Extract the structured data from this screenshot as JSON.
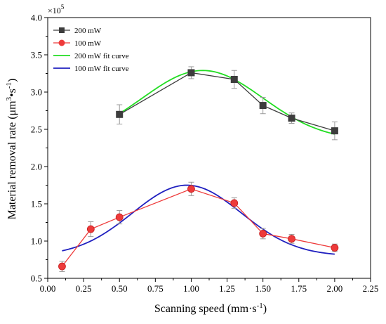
{
  "chart_data": {
    "type": "line",
    "xlabel_main": "Scanning speed (mm·s",
    "xlabel_sup": "-1",
    "xlabel_end": ")",
    "ylabel_main": "Material removal rate (μm",
    "ylabel_sup1": "3",
    "ylabel_mid": "•s",
    "ylabel_sup2": "-1",
    "ylabel_end": ")",
    "y_multiplier_base": "×10",
    "y_multiplier_exp": "5",
    "xlim": [
      0.0,
      2.25
    ],
    "ylim": [
      0.5,
      4.0
    ],
    "x_ticks": [
      "0.00",
      "0.25",
      "0.50",
      "0.75",
      "1.00",
      "1.25",
      "1.50",
      "1.75",
      "2.00",
      "2.25"
    ],
    "y_ticks": [
      "0.5",
      "1.0",
      "1.5",
      "2.0",
      "2.5",
      "3.0",
      "3.5",
      "4.0"
    ],
    "grid": false,
    "legend_position": "top-left",
    "series": [
      {
        "name": "200 mW",
        "color": "#3d3d3d",
        "marker": "square",
        "x": [
          0.5,
          1.0,
          1.3,
          1.5,
          1.7,
          2.0
        ],
        "y": [
          2.7,
          3.26,
          3.17,
          2.82,
          2.65,
          2.48
        ],
        "err": [
          0.13,
          0.08,
          0.12,
          0.11,
          0.07,
          0.12
        ]
      },
      {
        "name": "100 mW",
        "color": "#ee3a3a",
        "marker": "circle",
        "x": [
          0.1,
          0.3,
          0.5,
          1.0,
          1.3,
          1.5,
          1.7,
          2.0
        ],
        "y": [
          0.66,
          1.16,
          1.32,
          1.7,
          1.51,
          1.1,
          1.03,
          0.91
        ],
        "err": [
          0.07,
          0.1,
          0.09,
          0.09,
          0.07,
          0.07,
          0.06,
          0.05
        ]
      },
      {
        "name": "200 mW fit curve",
        "color": "#22dd22",
        "fit": {
          "baseline": 2.35,
          "amplitude": 0.94,
          "center": 1.08,
          "width": 0.42,
          "from": 0.5,
          "to": 2.0
        }
      },
      {
        "name": "100 mW fit curve",
        "color": "#1f1fbf",
        "fit": {
          "baseline": 0.8,
          "amplitude": 0.95,
          "center": 0.97,
          "width": 0.38,
          "from": 0.1,
          "to": 2.0
        }
      }
    ]
  }
}
